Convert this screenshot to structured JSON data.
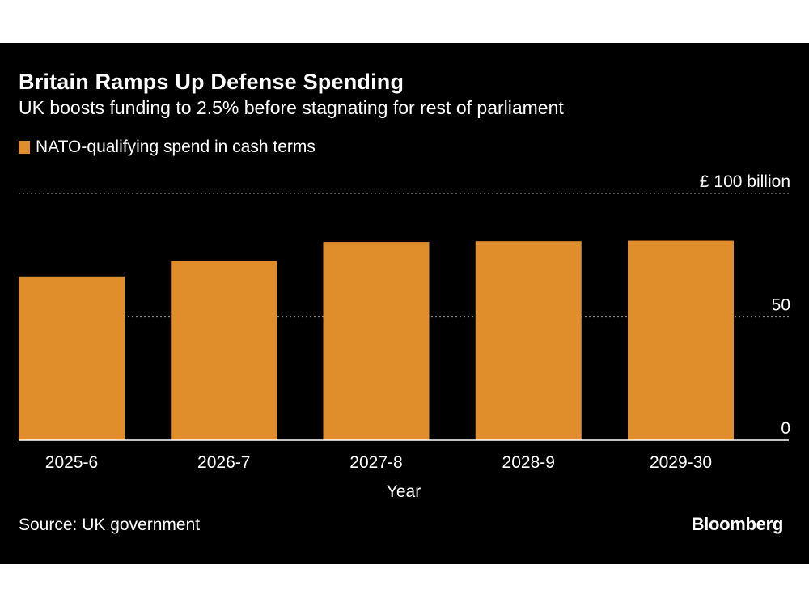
{
  "chart_data": {
    "type": "bar",
    "title": "Britain Ramps Up Defense Spending",
    "subtitle": "UK boosts funding to 2.5% before stagnating for rest of parliament",
    "categories": [
      "2025-6",
      "2026-7",
      "2027-8",
      "2028-9",
      "2029-30"
    ],
    "series": [
      {
        "name": "NATO-qualifying spend in cash terms",
        "values": [
          66.3,
          72.6,
          80.3,
          80.6,
          80.8
        ],
        "color": "#e08d2b"
      }
    ],
    "xlabel": "Year",
    "ylabel": "",
    "ylim": [
      0,
      100
    ],
    "yticks": [
      {
        "value": 0,
        "label": "0"
      },
      {
        "value": 50,
        "label": "50"
      },
      {
        "value": 100,
        "label": "£ 100 billion"
      }
    ],
    "grid": true,
    "legend_position": "top-left",
    "background": "#000000",
    "text_color": "#ffffff"
  },
  "footer": {
    "source": "Source: UK government",
    "brand": "Bloomberg"
  }
}
